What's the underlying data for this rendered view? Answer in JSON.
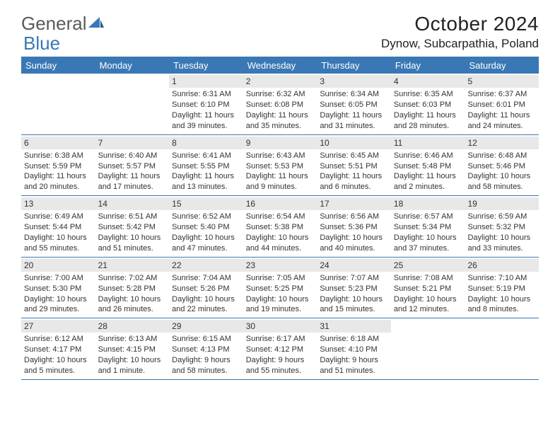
{
  "logo": {
    "text1": "General",
    "text2": "Blue"
  },
  "title": "October 2024",
  "location": "Dynow, Subcarpathia, Poland",
  "day_headers": [
    "Sunday",
    "Monday",
    "Tuesday",
    "Wednesday",
    "Thursday",
    "Friday",
    "Saturday"
  ],
  "colors": {
    "header_bg": "#3a78b5",
    "header_text": "#ffffff",
    "daynum_bg": "#e8e8e8",
    "border": "#3a78b5",
    "body_text": "#333333"
  },
  "typography": {
    "title_fontsize": 28,
    "location_fontsize": 17,
    "dayheader_fontsize": 13,
    "cell_fontsize": 11
  },
  "weeks": [
    [
      null,
      null,
      {
        "n": "1",
        "sr": "Sunrise: 6:31 AM",
        "ss": "Sunset: 6:10 PM",
        "d1": "Daylight: 11 hours",
        "d2": "and 39 minutes."
      },
      {
        "n": "2",
        "sr": "Sunrise: 6:32 AM",
        "ss": "Sunset: 6:08 PM",
        "d1": "Daylight: 11 hours",
        "d2": "and 35 minutes."
      },
      {
        "n": "3",
        "sr": "Sunrise: 6:34 AM",
        "ss": "Sunset: 6:05 PM",
        "d1": "Daylight: 11 hours",
        "d2": "and 31 minutes."
      },
      {
        "n": "4",
        "sr": "Sunrise: 6:35 AM",
        "ss": "Sunset: 6:03 PM",
        "d1": "Daylight: 11 hours",
        "d2": "and 28 minutes."
      },
      {
        "n": "5",
        "sr": "Sunrise: 6:37 AM",
        "ss": "Sunset: 6:01 PM",
        "d1": "Daylight: 11 hours",
        "d2": "and 24 minutes."
      }
    ],
    [
      {
        "n": "6",
        "sr": "Sunrise: 6:38 AM",
        "ss": "Sunset: 5:59 PM",
        "d1": "Daylight: 11 hours",
        "d2": "and 20 minutes."
      },
      {
        "n": "7",
        "sr": "Sunrise: 6:40 AM",
        "ss": "Sunset: 5:57 PM",
        "d1": "Daylight: 11 hours",
        "d2": "and 17 minutes."
      },
      {
        "n": "8",
        "sr": "Sunrise: 6:41 AM",
        "ss": "Sunset: 5:55 PM",
        "d1": "Daylight: 11 hours",
        "d2": "and 13 minutes."
      },
      {
        "n": "9",
        "sr": "Sunrise: 6:43 AM",
        "ss": "Sunset: 5:53 PM",
        "d1": "Daylight: 11 hours",
        "d2": "and 9 minutes."
      },
      {
        "n": "10",
        "sr": "Sunrise: 6:45 AM",
        "ss": "Sunset: 5:51 PM",
        "d1": "Daylight: 11 hours",
        "d2": "and 6 minutes."
      },
      {
        "n": "11",
        "sr": "Sunrise: 6:46 AM",
        "ss": "Sunset: 5:48 PM",
        "d1": "Daylight: 11 hours",
        "d2": "and 2 minutes."
      },
      {
        "n": "12",
        "sr": "Sunrise: 6:48 AM",
        "ss": "Sunset: 5:46 PM",
        "d1": "Daylight: 10 hours",
        "d2": "and 58 minutes."
      }
    ],
    [
      {
        "n": "13",
        "sr": "Sunrise: 6:49 AM",
        "ss": "Sunset: 5:44 PM",
        "d1": "Daylight: 10 hours",
        "d2": "and 55 minutes."
      },
      {
        "n": "14",
        "sr": "Sunrise: 6:51 AM",
        "ss": "Sunset: 5:42 PM",
        "d1": "Daylight: 10 hours",
        "d2": "and 51 minutes."
      },
      {
        "n": "15",
        "sr": "Sunrise: 6:52 AM",
        "ss": "Sunset: 5:40 PM",
        "d1": "Daylight: 10 hours",
        "d2": "and 47 minutes."
      },
      {
        "n": "16",
        "sr": "Sunrise: 6:54 AM",
        "ss": "Sunset: 5:38 PM",
        "d1": "Daylight: 10 hours",
        "d2": "and 44 minutes."
      },
      {
        "n": "17",
        "sr": "Sunrise: 6:56 AM",
        "ss": "Sunset: 5:36 PM",
        "d1": "Daylight: 10 hours",
        "d2": "and 40 minutes."
      },
      {
        "n": "18",
        "sr": "Sunrise: 6:57 AM",
        "ss": "Sunset: 5:34 PM",
        "d1": "Daylight: 10 hours",
        "d2": "and 37 minutes."
      },
      {
        "n": "19",
        "sr": "Sunrise: 6:59 AM",
        "ss": "Sunset: 5:32 PM",
        "d1": "Daylight: 10 hours",
        "d2": "and 33 minutes."
      }
    ],
    [
      {
        "n": "20",
        "sr": "Sunrise: 7:00 AM",
        "ss": "Sunset: 5:30 PM",
        "d1": "Daylight: 10 hours",
        "d2": "and 29 minutes."
      },
      {
        "n": "21",
        "sr": "Sunrise: 7:02 AM",
        "ss": "Sunset: 5:28 PM",
        "d1": "Daylight: 10 hours",
        "d2": "and 26 minutes."
      },
      {
        "n": "22",
        "sr": "Sunrise: 7:04 AM",
        "ss": "Sunset: 5:26 PM",
        "d1": "Daylight: 10 hours",
        "d2": "and 22 minutes."
      },
      {
        "n": "23",
        "sr": "Sunrise: 7:05 AM",
        "ss": "Sunset: 5:25 PM",
        "d1": "Daylight: 10 hours",
        "d2": "and 19 minutes."
      },
      {
        "n": "24",
        "sr": "Sunrise: 7:07 AM",
        "ss": "Sunset: 5:23 PM",
        "d1": "Daylight: 10 hours",
        "d2": "and 15 minutes."
      },
      {
        "n": "25",
        "sr": "Sunrise: 7:08 AM",
        "ss": "Sunset: 5:21 PM",
        "d1": "Daylight: 10 hours",
        "d2": "and 12 minutes."
      },
      {
        "n": "26",
        "sr": "Sunrise: 7:10 AM",
        "ss": "Sunset: 5:19 PM",
        "d1": "Daylight: 10 hours",
        "d2": "and 8 minutes."
      }
    ],
    [
      {
        "n": "27",
        "sr": "Sunrise: 6:12 AM",
        "ss": "Sunset: 4:17 PM",
        "d1": "Daylight: 10 hours",
        "d2": "and 5 minutes."
      },
      {
        "n": "28",
        "sr": "Sunrise: 6:13 AM",
        "ss": "Sunset: 4:15 PM",
        "d1": "Daylight: 10 hours",
        "d2": "and 1 minute."
      },
      {
        "n": "29",
        "sr": "Sunrise: 6:15 AM",
        "ss": "Sunset: 4:13 PM",
        "d1": "Daylight: 9 hours",
        "d2": "and 58 minutes."
      },
      {
        "n": "30",
        "sr": "Sunrise: 6:17 AM",
        "ss": "Sunset: 4:12 PM",
        "d1": "Daylight: 9 hours",
        "d2": "and 55 minutes."
      },
      {
        "n": "31",
        "sr": "Sunrise: 6:18 AM",
        "ss": "Sunset: 4:10 PM",
        "d1": "Daylight: 9 hours",
        "d2": "and 51 minutes."
      },
      null,
      null
    ]
  ]
}
